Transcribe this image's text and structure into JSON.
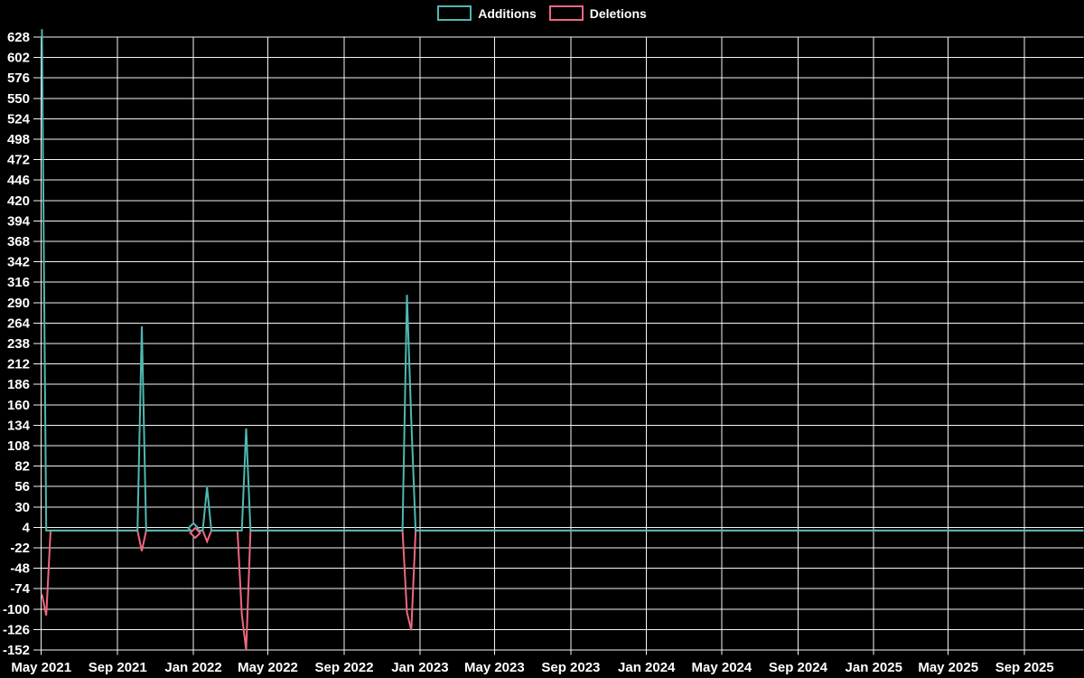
{
  "chart_data": {
    "type": "line",
    "title": "",
    "legend_position": "top-center",
    "background_color": "#000000",
    "grid_color": "#f5f5f5",
    "text_color": "#ffffff",
    "grid": true,
    "legend": [
      {
        "label": "Additions",
        "color": "#4fb8b1"
      },
      {
        "label": "Deletions",
        "color": "#ee6880"
      }
    ],
    "ylim": [
      -152,
      638
    ],
    "y_ticks": [
      628,
      602,
      576,
      550,
      524,
      498,
      472,
      446,
      420,
      394,
      368,
      342,
      316,
      290,
      264,
      238,
      212,
      186,
      160,
      134,
      108,
      82,
      56,
      30,
      4,
      -22,
      -48,
      -74,
      -100,
      -126,
      -152
    ],
    "xlim": [
      "2021-05-01",
      "2025-12-05"
    ],
    "x_ticks": [
      {
        "label": "May 2021",
        "date": "2021-05-01"
      },
      {
        "label": "Sep 2021",
        "date": "2021-09-01"
      },
      {
        "label": "Jan 2022",
        "date": "2022-01-01"
      },
      {
        "label": "May 2022",
        "date": "2022-05-01"
      },
      {
        "label": "Sep 2022",
        "date": "2022-09-01"
      },
      {
        "label": "Jan 2023",
        "date": "2023-01-01"
      },
      {
        "label": "May 2023",
        "date": "2023-05-01"
      },
      {
        "label": "Sep 2023",
        "date": "2023-09-01"
      },
      {
        "label": "Jan 2024",
        "date": "2024-01-01"
      },
      {
        "label": "May 2024",
        "date": "2024-05-01"
      },
      {
        "label": "Sep 2024",
        "date": "2024-09-01"
      },
      {
        "label": "Jan 2025",
        "date": "2025-01-01"
      },
      {
        "label": "May 2025",
        "date": "2025-05-01"
      },
      {
        "label": "Sep 2025",
        "date": "2025-09-01"
      }
    ],
    "series": [
      {
        "name": "Additions",
        "color": "#4fb8b1",
        "points": [
          [
            "2021-05-02",
            638
          ],
          [
            "2021-05-09",
            0
          ],
          [
            "2021-10-03",
            0
          ],
          [
            "2021-10-10",
            260
          ],
          [
            "2021-10-17",
            0
          ],
          [
            "2022-01-16",
            0
          ],
          [
            "2022-01-23",
            55
          ],
          [
            "2022-01-30",
            0
          ],
          [
            "2022-03-20",
            0
          ],
          [
            "2022-03-27",
            130
          ],
          [
            "2022-04-03",
            0
          ],
          [
            "2022-12-04",
            0
          ],
          [
            "2022-12-11",
            300
          ],
          [
            "2022-12-18",
            140
          ],
          [
            "2022-12-25",
            0
          ],
          [
            "2025-12-05",
            0
          ]
        ]
      },
      {
        "name": "Deletions",
        "color": "#ee6880",
        "points": [
          [
            "2021-05-02",
            -81
          ],
          [
            "2021-05-09",
            -108
          ],
          [
            "2021-05-16",
            0
          ],
          [
            "2021-10-03",
            0
          ],
          [
            "2021-10-10",
            -26
          ],
          [
            "2021-10-17",
            0
          ],
          [
            "2022-01-16",
            0
          ],
          [
            "2022-01-23",
            -14
          ],
          [
            "2022-01-30",
            0
          ],
          [
            "2022-03-13",
            0
          ],
          [
            "2022-03-20",
            -107
          ],
          [
            "2022-03-27",
            -152
          ],
          [
            "2022-04-03",
            0
          ],
          [
            "2022-12-04",
            0
          ],
          [
            "2022-12-11",
            -104
          ],
          [
            "2022-12-18",
            -127
          ],
          [
            "2022-12-25",
            0
          ],
          [
            "2025-12-05",
            0
          ]
        ]
      }
    ],
    "markers": [
      {
        "series": "Additions",
        "date": "2022-01-01",
        "value": 3,
        "shape": "diamond"
      },
      {
        "series": "Deletions",
        "date": "2022-01-04",
        "value": -3,
        "shape": "diamond"
      }
    ]
  }
}
